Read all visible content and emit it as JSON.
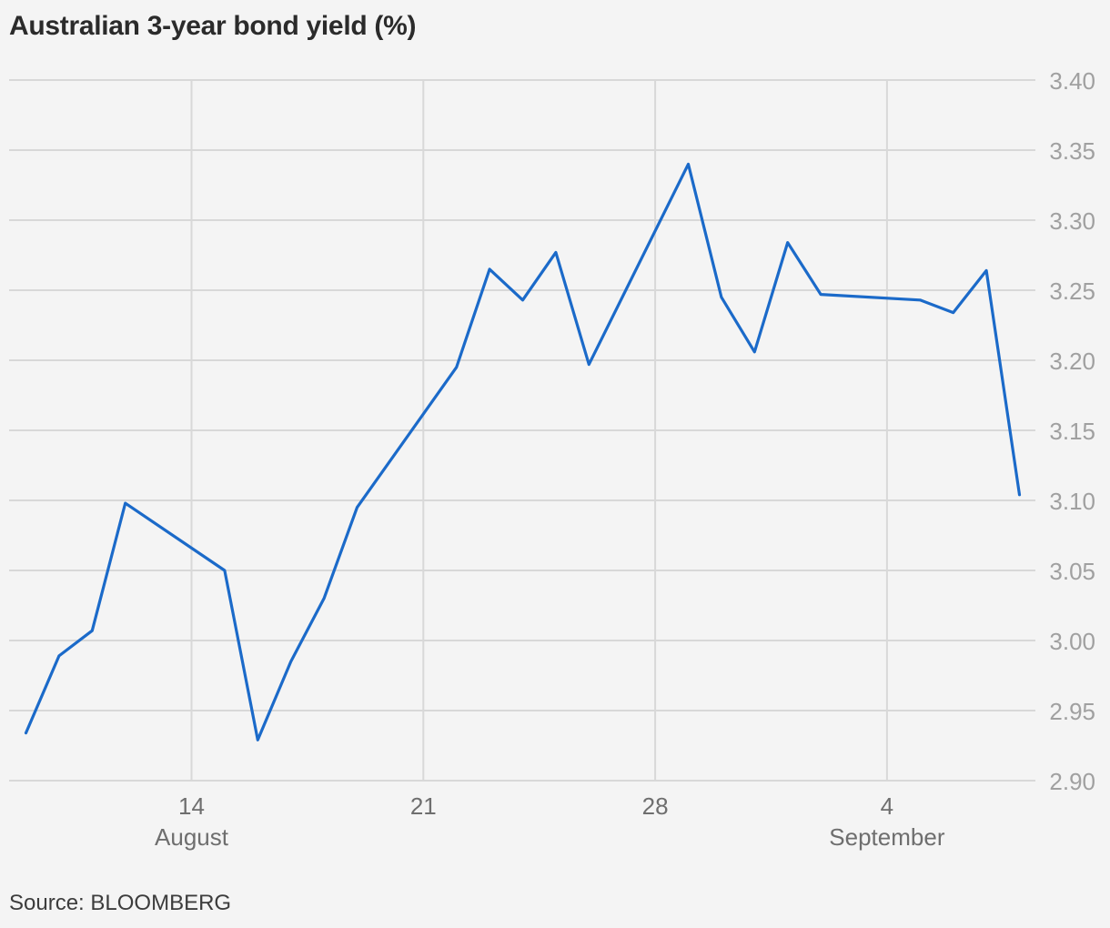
{
  "title": "Australian 3-year bond yield (%)",
  "source": "Source: BLOOMBERG",
  "colors": {
    "line": "#1b6ac9",
    "grid": "#d8d8d8",
    "background": "#f4f4f4"
  },
  "chart_data": {
    "type": "line",
    "title": "Australian 3-year bond yield (%)",
    "xlabel": "",
    "ylabel": "",
    "grid": true,
    "legend": "none",
    "y_axis_position": "right",
    "ylim": [
      2.9,
      3.4
    ],
    "xlim": [
      "2018-08-09",
      "2018-09-07"
    ],
    "y_ticks": [
      "3.40",
      "3.35",
      "3.30",
      "3.25",
      "3.20",
      "3.15",
      "3.10",
      "3.05",
      "3.00",
      "2.95",
      "2.90"
    ],
    "x_ticks": [
      {
        "date": "2018-08-14",
        "label": "14",
        "month": "August"
      },
      {
        "date": "2018-08-21",
        "label": "21",
        "month": ""
      },
      {
        "date": "2018-08-28",
        "label": "28",
        "month": ""
      },
      {
        "date": "2018-09-04",
        "label": "4",
        "month": "September"
      }
    ],
    "series": [
      {
        "x": [
          "2018-08-09",
          "2018-08-10",
          "2018-08-11",
          "2018-08-12",
          "2018-08-15",
          "2018-08-16",
          "2018-08-17",
          "2018-08-18",
          "2018-08-19",
          "2018-08-22",
          "2018-08-23",
          "2018-08-24",
          "2018-08-25",
          "2018-08-26",
          "2018-08-29",
          "2018-08-30",
          "2018-08-31",
          "2018-09-01",
          "2018-09-02",
          "2018-09-05",
          "2018-09-06",
          "2018-09-07",
          "2018-09-08"
        ],
        "values": [
          2.934,
          2.989,
          3.007,
          3.098,
          3.05,
          2.929,
          2.985,
          3.03,
          3.095,
          3.195,
          3.265,
          3.243,
          3.277,
          3.197,
          3.34,
          3.245,
          3.206,
          3.284,
          3.247,
          3.243,
          3.234,
          3.264,
          3.104
        ]
      }
    ]
  }
}
